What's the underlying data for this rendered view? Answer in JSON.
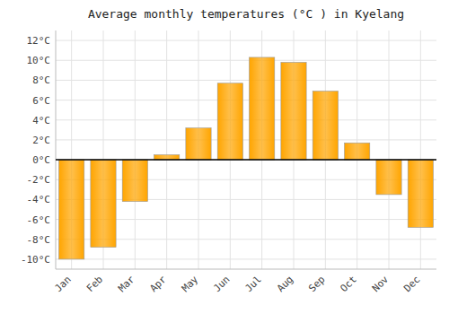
{
  "chart_data": {
    "type": "bar",
    "title": "Average monthly temperatures (°C ) in Kyelang",
    "categories": [
      "Jan",
      "Feb",
      "Mar",
      "Apr",
      "May",
      "Jun",
      "Jul",
      "Aug",
      "Sep",
      "Oct",
      "Nov",
      "Dec"
    ],
    "values": [
      -10.0,
      -8.8,
      -4.2,
      0.5,
      3.2,
      7.7,
      10.3,
      9.8,
      6.9,
      1.7,
      -3.5,
      -6.8
    ],
    "color": "#FFA500",
    "ylim": [
      -11,
      13
    ],
    "yticks": [
      {
        "value": -10,
        "label": "-10°C"
      },
      {
        "value": -8,
        "label": "-8°C"
      },
      {
        "value": -6,
        "label": "-6°C"
      },
      {
        "value": -4,
        "label": "-4°C"
      },
      {
        "value": -2,
        "label": "-2°C"
      },
      {
        "value": 0,
        "label": "0°C"
      },
      {
        "value": 2,
        "label": "2°C"
      },
      {
        "value": 4,
        "label": "4°C"
      },
      {
        "value": 6,
        "label": "6°C"
      },
      {
        "value": 8,
        "label": "8°C"
      },
      {
        "value": 10,
        "label": "10°C"
      },
      {
        "value": 12,
        "label": "12°C"
      }
    ],
    "grid": true
  }
}
